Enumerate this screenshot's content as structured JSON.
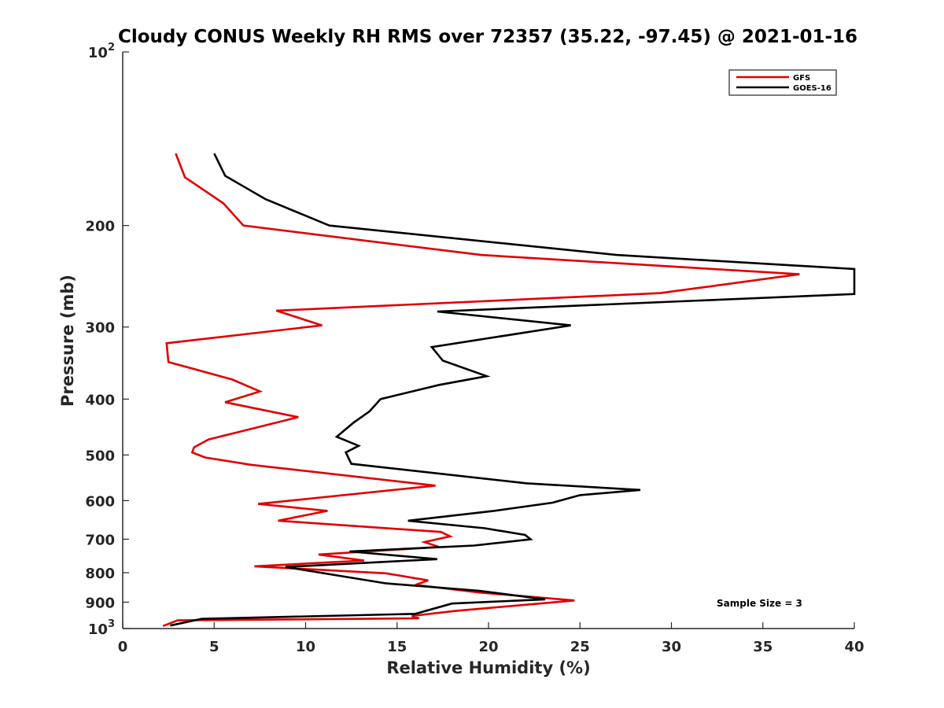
{
  "chart_data": {
    "type": "line",
    "title": "Cloudy CONUS Weekly RH RMS over 72357 (35.22, -97.45) @ 2021-01-16",
    "xlabel": "Relative Humidity (%)",
    "ylabel": "Pressure (mb)",
    "xlim": [
      0,
      40
    ],
    "ylim": [
      100,
      1000
    ],
    "y_scale": "log",
    "y_reversed": true,
    "x_ticks": [
      0,
      5,
      10,
      15,
      20,
      25,
      30,
      35,
      40
    ],
    "x_tick_labels": [
      "0",
      "5",
      "10",
      "15",
      "20",
      "25",
      "30",
      "35",
      "40"
    ],
    "y_ticks": [
      100,
      200,
      300,
      400,
      500,
      600,
      700,
      800,
      900,
      1000
    ],
    "y_tick_labels": [
      {
        "base": "10",
        "exp": "2"
      },
      {
        "base": "200",
        "exp": ""
      },
      {
        "base": "300",
        "exp": ""
      },
      {
        "base": "400",
        "exp": ""
      },
      {
        "base": "500",
        "exp": ""
      },
      {
        "base": "600",
        "exp": ""
      },
      {
        "base": "700",
        "exp": ""
      },
      {
        "base": "800",
        "exp": ""
      },
      {
        "base": "900",
        "exp": ""
      },
      {
        "base": "10",
        "exp": "3"
      }
    ],
    "grid": false,
    "legend": "top-right",
    "annotation": "Sample Size = 3",
    "series": [
      {
        "name": "GFS",
        "color": "#e00000",
        "points": [
          [
            2.9,
            150
          ],
          [
            3.4,
            165
          ],
          [
            5.5,
            183
          ],
          [
            6.6,
            200
          ],
          [
            19.6,
            225
          ],
          [
            37.0,
            243
          ],
          [
            29.4,
            262
          ],
          [
            8.4,
            281
          ],
          [
            10.9,
            298
          ],
          [
            2.4,
            320
          ],
          [
            2.5,
            345
          ],
          [
            6.0,
            370
          ],
          [
            7.5,
            388
          ],
          [
            5.6,
            405
          ],
          [
            9.6,
            430
          ],
          [
            7.1,
            450
          ],
          [
            4.7,
            470
          ],
          [
            3.9,
            485
          ],
          [
            3.8,
            495
          ],
          [
            4.5,
            505
          ],
          [
            7.0,
            520
          ],
          [
            17.1,
            565
          ],
          [
            7.4,
            608
          ],
          [
            11.2,
            625
          ],
          [
            8.5,
            650
          ],
          [
            17.4,
            680
          ],
          [
            17.9,
            692
          ],
          [
            16.5,
            708
          ],
          [
            17.3,
            722
          ],
          [
            10.7,
            744
          ],
          [
            13.2,
            762
          ],
          [
            7.2,
            780
          ],
          [
            14.4,
            802
          ],
          [
            16.7,
            825
          ],
          [
            16.0,
            840
          ],
          [
            19.5,
            866
          ],
          [
            24.7,
            894
          ],
          [
            18.2,
            932
          ],
          [
            15.8,
            951
          ],
          [
            16.2,
            960
          ],
          [
            3.0,
            968
          ],
          [
            2.2,
            990
          ]
        ]
      },
      {
        "name": "GOES-16",
        "color": "#000000",
        "points": [
          [
            5.0,
            150
          ],
          [
            5.6,
            164
          ],
          [
            7.8,
            180
          ],
          [
            11.3,
            200
          ],
          [
            27.0,
            225
          ],
          [
            40.0,
            238
          ],
          [
            40.0,
            263
          ],
          [
            17.2,
            282
          ],
          [
            24.5,
            298
          ],
          [
            16.9,
            325
          ],
          [
            17.5,
            343
          ],
          [
            19.9,
            365
          ],
          [
            17.3,
            378
          ],
          [
            14.1,
            400
          ],
          [
            13.5,
            420
          ],
          [
            12.6,
            440
          ],
          [
            11.7,
            465
          ],
          [
            12.9,
            482
          ],
          [
            12.2,
            495
          ],
          [
            12.5,
            518
          ],
          [
            22.1,
            560
          ],
          [
            28.3,
            575
          ],
          [
            25.0,
            587
          ],
          [
            23.5,
            605
          ],
          [
            20.3,
            625
          ],
          [
            15.6,
            650
          ],
          [
            19.8,
            670
          ],
          [
            22.0,
            688
          ],
          [
            22.3,
            700
          ],
          [
            19.2,
            718
          ],
          [
            12.4,
            735
          ],
          [
            17.2,
            758
          ],
          [
            8.9,
            782
          ],
          [
            14.4,
            835
          ],
          [
            19.5,
            860
          ],
          [
            23.1,
            890
          ],
          [
            18.0,
            905
          ],
          [
            16.0,
            943
          ],
          [
            4.3,
            962
          ],
          [
            2.6,
            988
          ]
        ]
      }
    ]
  }
}
